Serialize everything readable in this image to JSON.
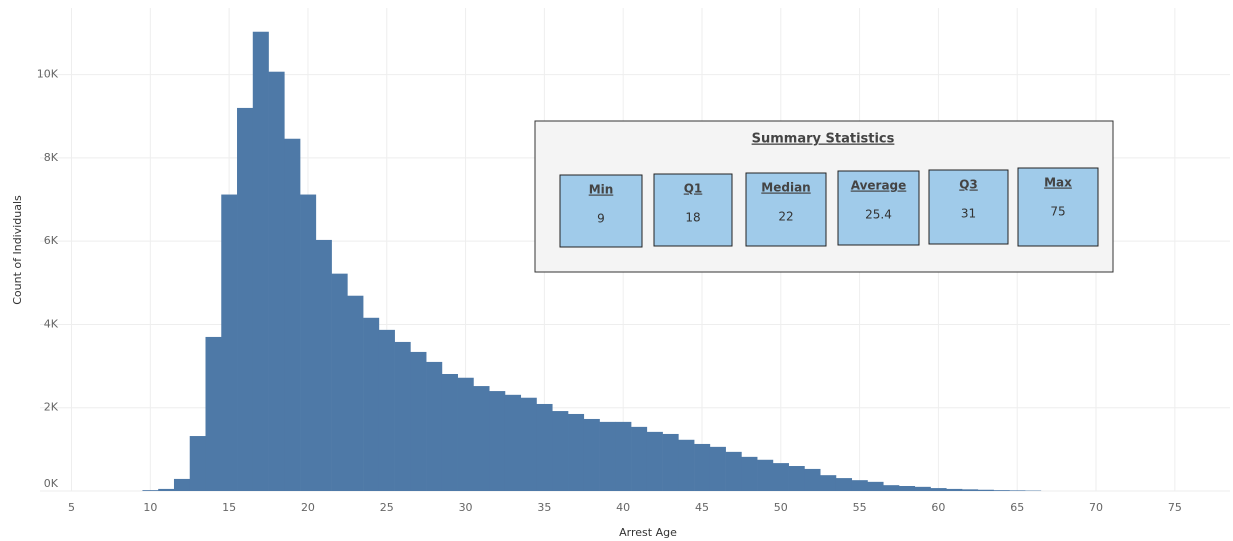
{
  "chart_data": {
    "type": "histogram",
    "x_label": "Arrest Age",
    "y_label": "Count of Individuals",
    "color": "#4e79a7",
    "grid": true,
    "bins": [
      9.5,
      10.5,
      11.5,
      12.5,
      13.5,
      14.5,
      15.5,
      16.5,
      17.5,
      18.5,
      19.5,
      20.5,
      21.5,
      22.5,
      23.5,
      24.5,
      25.5,
      26.5,
      27.5,
      28.5,
      29.5,
      30.5,
      31.5,
      32.5,
      33.5,
      34.5,
      35.5,
      36.5,
      37.5,
      38.5,
      39.5,
      40.5,
      41.5,
      42.5,
      43.5,
      44.5,
      45.5,
      46.5,
      47.5,
      48.5,
      49.5,
      50.5,
      51.5,
      52.5,
      53.5,
      54.5,
      55.5,
      56.5,
      57.5,
      58.5,
      59.5,
      60.5,
      61.5,
      62.5,
      63.5,
      64.5,
      65.5,
      66.5
    ],
    "values": [
      20,
      50,
      290,
      1320,
      3700,
      7120,
      9200,
      11030,
      10070,
      8460,
      7120,
      6030,
      5220,
      4690,
      4160,
      3870,
      3580,
      3340,
      3100,
      2810,
      2720,
      2520,
      2400,
      2310,
      2240,
      2090,
      1920,
      1850,
      1730,
      1660,
      1660,
      1540,
      1420,
      1370,
      1230,
      1130,
      1060,
      940,
      820,
      750,
      670,
      600,
      530,
      380,
      310,
      260,
      220,
      140,
      120,
      100,
      70,
      50,
      40,
      30,
      20,
      15,
      10
    ],
    "xlim": [
      3,
      78.5
    ],
    "xticks": [
      5,
      10,
      15,
      20,
      25,
      30,
      35,
      40,
      45,
      50,
      55,
      60,
      65,
      70,
      75
    ],
    "ylim": [
      0,
      11600
    ],
    "yticks": [
      {
        "value": 0,
        "label": "0K"
      },
      {
        "value": 2000,
        "label": "2K"
      },
      {
        "value": 4000,
        "label": "4K"
      },
      {
        "value": 6000,
        "label": "6K"
      },
      {
        "value": 8000,
        "label": "8K"
      },
      {
        "value": 10000,
        "label": "10K"
      }
    ],
    "summary": {
      "title": "Summary Statistics",
      "stats": [
        {
          "label": "Min",
          "value": 9
        },
        {
          "label": "Q1",
          "value": 18
        },
        {
          "label": "Median",
          "value": 22
        },
        {
          "label": "Average",
          "value": 25.4
        },
        {
          "label": "Q3",
          "value": 31
        },
        {
          "label": "Max",
          "value": 75
        }
      ]
    }
  }
}
